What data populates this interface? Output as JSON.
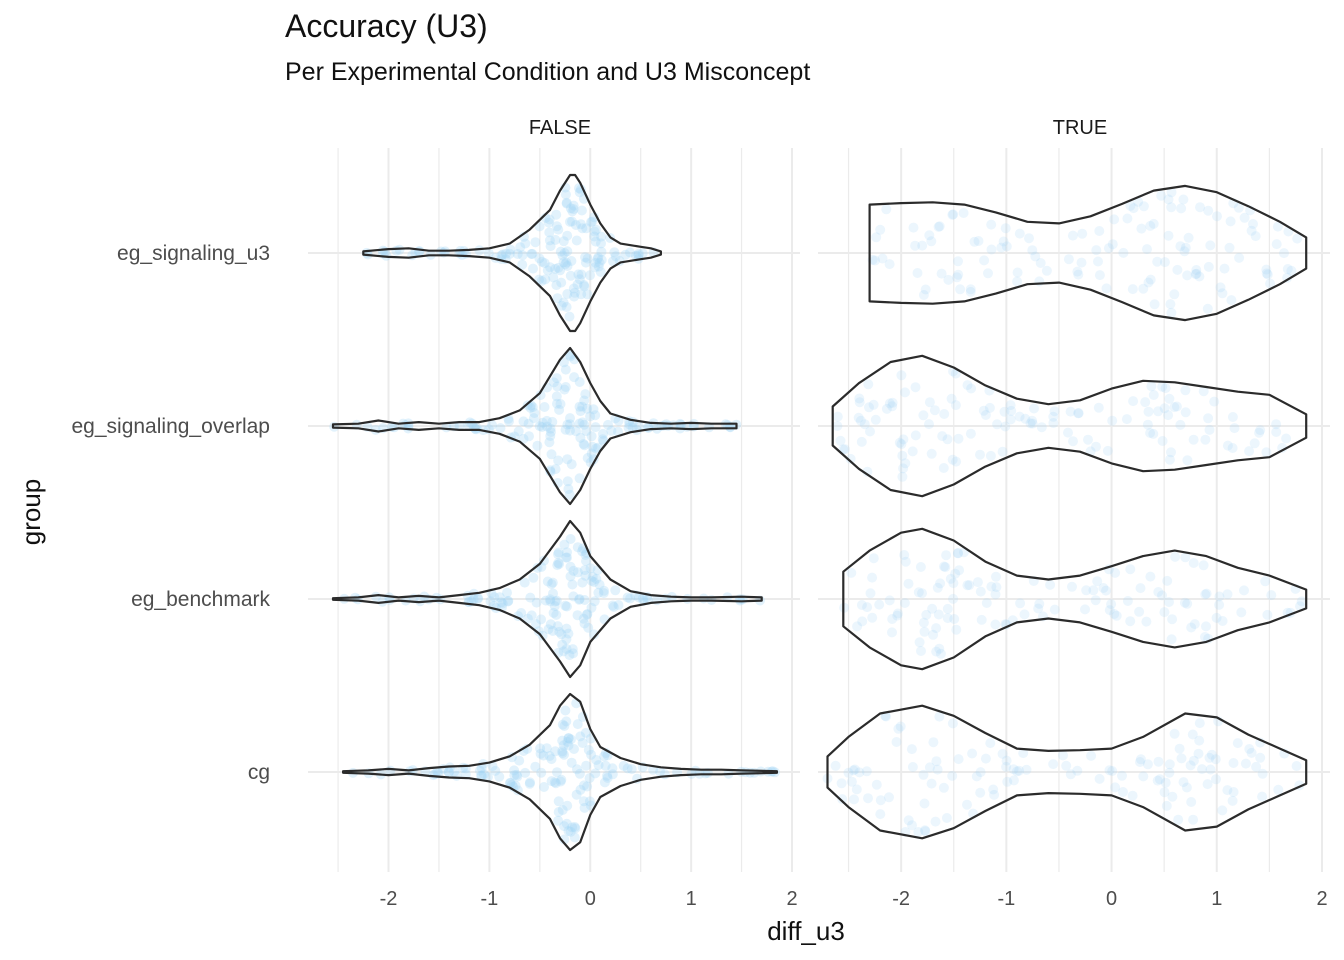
{
  "chart_data": {
    "type": "violin",
    "title": "Accuracy (U3)",
    "subtitle": "Per Experimental Condition and U3 Misconcept",
    "xlabel": "diff_u3",
    "ylabel": "group",
    "xlim": [
      -2.6,
      2.0
    ],
    "x_ticks": [
      -2,
      -1,
      0,
      1,
      2
    ],
    "categories": [
      "eg_signaling_u3",
      "eg_signaling_overlap",
      "eg_benchmark",
      "cg"
    ],
    "grid": true,
    "point_color": "#9fd3f5",
    "outline_color": "#2b2b2b",
    "panels": [
      {
        "facet": "FALSE",
        "violins": [
          {
            "group": "eg_signaling_u3",
            "min": -2.25,
            "max": 0.7,
            "x": [
              -2.25,
              -2.0,
              -1.8,
              -1.6,
              -1.4,
              -1.2,
              -1.0,
              -0.8,
              -0.6,
              -0.4,
              -0.3,
              -0.2,
              -0.15,
              -0.1,
              0.0,
              0.1,
              0.2,
              0.3,
              0.4,
              0.5,
              0.6,
              0.7
            ],
            "density": [
              0.02,
              0.05,
              0.06,
              0.03,
              0.03,
              0.04,
              0.06,
              0.12,
              0.3,
              0.55,
              0.8,
              1.0,
              1.0,
              0.9,
              0.62,
              0.38,
              0.2,
              0.12,
              0.1,
              0.08,
              0.06,
              0.02
            ]
          },
          {
            "group": "eg_signaling_overlap",
            "min": -2.55,
            "max": 1.45,
            "x": [
              -2.55,
              -2.3,
              -2.1,
              -1.9,
              -1.7,
              -1.5,
              -1.3,
              -1.1,
              -0.9,
              -0.7,
              -0.5,
              -0.3,
              -0.2,
              -0.1,
              0.0,
              0.1,
              0.2,
              0.4,
              0.6,
              0.8,
              1.0,
              1.2,
              1.45
            ],
            "density": [
              0.02,
              0.03,
              0.07,
              0.03,
              0.05,
              0.03,
              0.05,
              0.05,
              0.1,
              0.2,
              0.42,
              0.85,
              1.0,
              0.82,
              0.55,
              0.32,
              0.16,
              0.08,
              0.04,
              0.03,
              0.04,
              0.03,
              0.03
            ]
          },
          {
            "group": "eg_benchmark",
            "min": -2.55,
            "max": 1.7,
            "x": [
              -2.55,
              -2.3,
              -2.1,
              -1.9,
              -1.7,
              -1.5,
              -1.3,
              -1.1,
              -0.9,
              -0.7,
              -0.5,
              -0.3,
              -0.2,
              -0.1,
              0.0,
              0.2,
              0.4,
              0.6,
              0.8,
              1.0,
              1.2,
              1.5,
              1.7
            ],
            "density": [
              0.01,
              0.02,
              0.05,
              0.02,
              0.04,
              0.02,
              0.05,
              0.08,
              0.14,
              0.25,
              0.45,
              0.8,
              1.0,
              0.85,
              0.55,
              0.25,
              0.1,
              0.05,
              0.03,
              0.02,
              0.02,
              0.03,
              0.02
            ]
          },
          {
            "group": "cg",
            "min": -2.45,
            "max": 1.85,
            "x": [
              -2.45,
              -2.2,
              -2.0,
              -1.8,
              -1.6,
              -1.4,
              -1.2,
              -1.0,
              -0.8,
              -0.6,
              -0.4,
              -0.3,
              -0.2,
              -0.1,
              0.0,
              0.1,
              0.3,
              0.5,
              0.7,
              0.9,
              1.1,
              1.3,
              1.5,
              1.85
            ],
            "density": [
              0.01,
              0.02,
              0.04,
              0.02,
              0.05,
              0.07,
              0.08,
              0.12,
              0.2,
              0.35,
              0.6,
              0.85,
              1.0,
              0.9,
              0.55,
              0.32,
              0.18,
              0.1,
              0.06,
              0.04,
              0.03,
              0.03,
              0.02,
              0.01
            ]
          }
        ]
      },
      {
        "facet": "TRUE",
        "violins": [
          {
            "group": "eg_signaling_u3",
            "min": -2.3,
            "max": 1.85,
            "x": [
              -2.3,
              -2.0,
              -1.7,
              -1.4,
              -1.1,
              -0.8,
              -0.5,
              -0.2,
              0.1,
              0.4,
              0.7,
              1.0,
              1.3,
              1.6,
              1.85
            ],
            "density": [
              0.62,
              0.64,
              0.65,
              0.62,
              0.52,
              0.4,
              0.38,
              0.47,
              0.63,
              0.8,
              0.86,
              0.78,
              0.6,
              0.4,
              0.2
            ]
          },
          {
            "group": "eg_signaling_overlap",
            "min": -2.65,
            "max": 1.85,
            "x": [
              -2.65,
              -2.4,
              -2.1,
              -1.8,
              -1.5,
              -1.2,
              -0.9,
              -0.6,
              -0.3,
              0.0,
              0.3,
              0.6,
              0.9,
              1.2,
              1.5,
              1.85
            ],
            "density": [
              0.25,
              0.55,
              0.82,
              0.9,
              0.75,
              0.52,
              0.35,
              0.28,
              0.33,
              0.48,
              0.58,
              0.56,
              0.5,
              0.44,
              0.4,
              0.15
            ]
          },
          {
            "group": "eg_benchmark",
            "min": -2.55,
            "max": 1.85,
            "x": [
              -2.55,
              -2.3,
              -2.0,
              -1.8,
              -1.5,
              -1.2,
              -0.9,
              -0.6,
              -0.3,
              0.0,
              0.3,
              0.6,
              0.9,
              1.2,
              1.5,
              1.85
            ],
            "density": [
              0.35,
              0.62,
              0.85,
              0.9,
              0.75,
              0.48,
              0.3,
              0.25,
              0.3,
              0.42,
              0.55,
              0.62,
              0.55,
              0.4,
              0.3,
              0.12
            ]
          },
          {
            "group": "cg",
            "min": -2.7,
            "max": 1.85,
            "x": [
              -2.7,
              -2.5,
              -2.2,
              -1.8,
              -1.5,
              -1.2,
              -0.9,
              -0.6,
              -0.3,
              0.0,
              0.3,
              0.7,
              1.0,
              1.3,
              1.6,
              1.85
            ],
            "density": [
              0.2,
              0.45,
              0.75,
              0.85,
              0.72,
              0.5,
              0.3,
              0.27,
              0.28,
              0.3,
              0.45,
              0.75,
              0.7,
              0.48,
              0.3,
              0.15
            ]
          }
        ]
      }
    ]
  }
}
